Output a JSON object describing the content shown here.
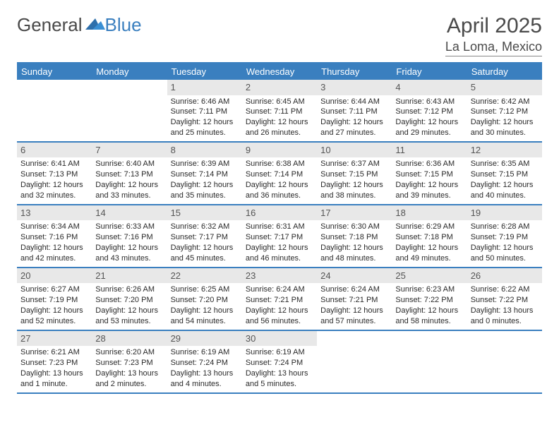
{
  "logo": {
    "part1": "General",
    "part2": "Blue"
  },
  "title": "April 2025",
  "subtitle": "La Loma, Mexico",
  "day_headers": [
    "Sunday",
    "Monday",
    "Tuesday",
    "Wednesday",
    "Thursday",
    "Friday",
    "Saturday"
  ],
  "colors": {
    "header_bg": "#3a7fbf",
    "header_text": "#ffffff",
    "num_bg": "#e8e8e8",
    "grid_line": "#3a7fbf",
    "text": "#2a2a2a",
    "title_text": "#4a4a4a"
  },
  "labels": {
    "sunrise": "Sunrise:",
    "sunset": "Sunset:",
    "daylight": "Daylight:"
  },
  "weeks": [
    [
      {
        "n": "",
        "empty": true
      },
      {
        "n": "",
        "empty": true
      },
      {
        "n": "1",
        "sr": "6:46 AM",
        "ss": "7:11 PM",
        "dl": "12 hours and 25 minutes."
      },
      {
        "n": "2",
        "sr": "6:45 AM",
        "ss": "7:11 PM",
        "dl": "12 hours and 26 minutes."
      },
      {
        "n": "3",
        "sr": "6:44 AM",
        "ss": "7:11 PM",
        "dl": "12 hours and 27 minutes."
      },
      {
        "n": "4",
        "sr": "6:43 AM",
        "ss": "7:12 PM",
        "dl": "12 hours and 29 minutes."
      },
      {
        "n": "5",
        "sr": "6:42 AM",
        "ss": "7:12 PM",
        "dl": "12 hours and 30 minutes."
      }
    ],
    [
      {
        "n": "6",
        "sr": "6:41 AM",
        "ss": "7:13 PM",
        "dl": "12 hours and 32 minutes."
      },
      {
        "n": "7",
        "sr": "6:40 AM",
        "ss": "7:13 PM",
        "dl": "12 hours and 33 minutes."
      },
      {
        "n": "8",
        "sr": "6:39 AM",
        "ss": "7:14 PM",
        "dl": "12 hours and 35 minutes."
      },
      {
        "n": "9",
        "sr": "6:38 AM",
        "ss": "7:14 PM",
        "dl": "12 hours and 36 minutes."
      },
      {
        "n": "10",
        "sr": "6:37 AM",
        "ss": "7:15 PM",
        "dl": "12 hours and 38 minutes."
      },
      {
        "n": "11",
        "sr": "6:36 AM",
        "ss": "7:15 PM",
        "dl": "12 hours and 39 minutes."
      },
      {
        "n": "12",
        "sr": "6:35 AM",
        "ss": "7:15 PM",
        "dl": "12 hours and 40 minutes."
      }
    ],
    [
      {
        "n": "13",
        "sr": "6:34 AM",
        "ss": "7:16 PM",
        "dl": "12 hours and 42 minutes."
      },
      {
        "n": "14",
        "sr": "6:33 AM",
        "ss": "7:16 PM",
        "dl": "12 hours and 43 minutes."
      },
      {
        "n": "15",
        "sr": "6:32 AM",
        "ss": "7:17 PM",
        "dl": "12 hours and 45 minutes."
      },
      {
        "n": "16",
        "sr": "6:31 AM",
        "ss": "7:17 PM",
        "dl": "12 hours and 46 minutes."
      },
      {
        "n": "17",
        "sr": "6:30 AM",
        "ss": "7:18 PM",
        "dl": "12 hours and 48 minutes."
      },
      {
        "n": "18",
        "sr": "6:29 AM",
        "ss": "7:18 PM",
        "dl": "12 hours and 49 minutes."
      },
      {
        "n": "19",
        "sr": "6:28 AM",
        "ss": "7:19 PM",
        "dl": "12 hours and 50 minutes."
      }
    ],
    [
      {
        "n": "20",
        "sr": "6:27 AM",
        "ss": "7:19 PM",
        "dl": "12 hours and 52 minutes."
      },
      {
        "n": "21",
        "sr": "6:26 AM",
        "ss": "7:20 PM",
        "dl": "12 hours and 53 minutes."
      },
      {
        "n": "22",
        "sr": "6:25 AM",
        "ss": "7:20 PM",
        "dl": "12 hours and 54 minutes."
      },
      {
        "n": "23",
        "sr": "6:24 AM",
        "ss": "7:21 PM",
        "dl": "12 hours and 56 minutes."
      },
      {
        "n": "24",
        "sr": "6:24 AM",
        "ss": "7:21 PM",
        "dl": "12 hours and 57 minutes."
      },
      {
        "n": "25",
        "sr": "6:23 AM",
        "ss": "7:22 PM",
        "dl": "12 hours and 58 minutes."
      },
      {
        "n": "26",
        "sr": "6:22 AM",
        "ss": "7:22 PM",
        "dl": "13 hours and 0 minutes."
      }
    ],
    [
      {
        "n": "27",
        "sr": "6:21 AM",
        "ss": "7:23 PM",
        "dl": "13 hours and 1 minute."
      },
      {
        "n": "28",
        "sr": "6:20 AM",
        "ss": "7:23 PM",
        "dl": "13 hours and 2 minutes."
      },
      {
        "n": "29",
        "sr": "6:19 AM",
        "ss": "7:24 PM",
        "dl": "13 hours and 4 minutes."
      },
      {
        "n": "30",
        "sr": "6:19 AM",
        "ss": "7:24 PM",
        "dl": "13 hours and 5 minutes."
      },
      {
        "n": "",
        "empty": true
      },
      {
        "n": "",
        "empty": true
      },
      {
        "n": "",
        "empty": true
      }
    ]
  ]
}
